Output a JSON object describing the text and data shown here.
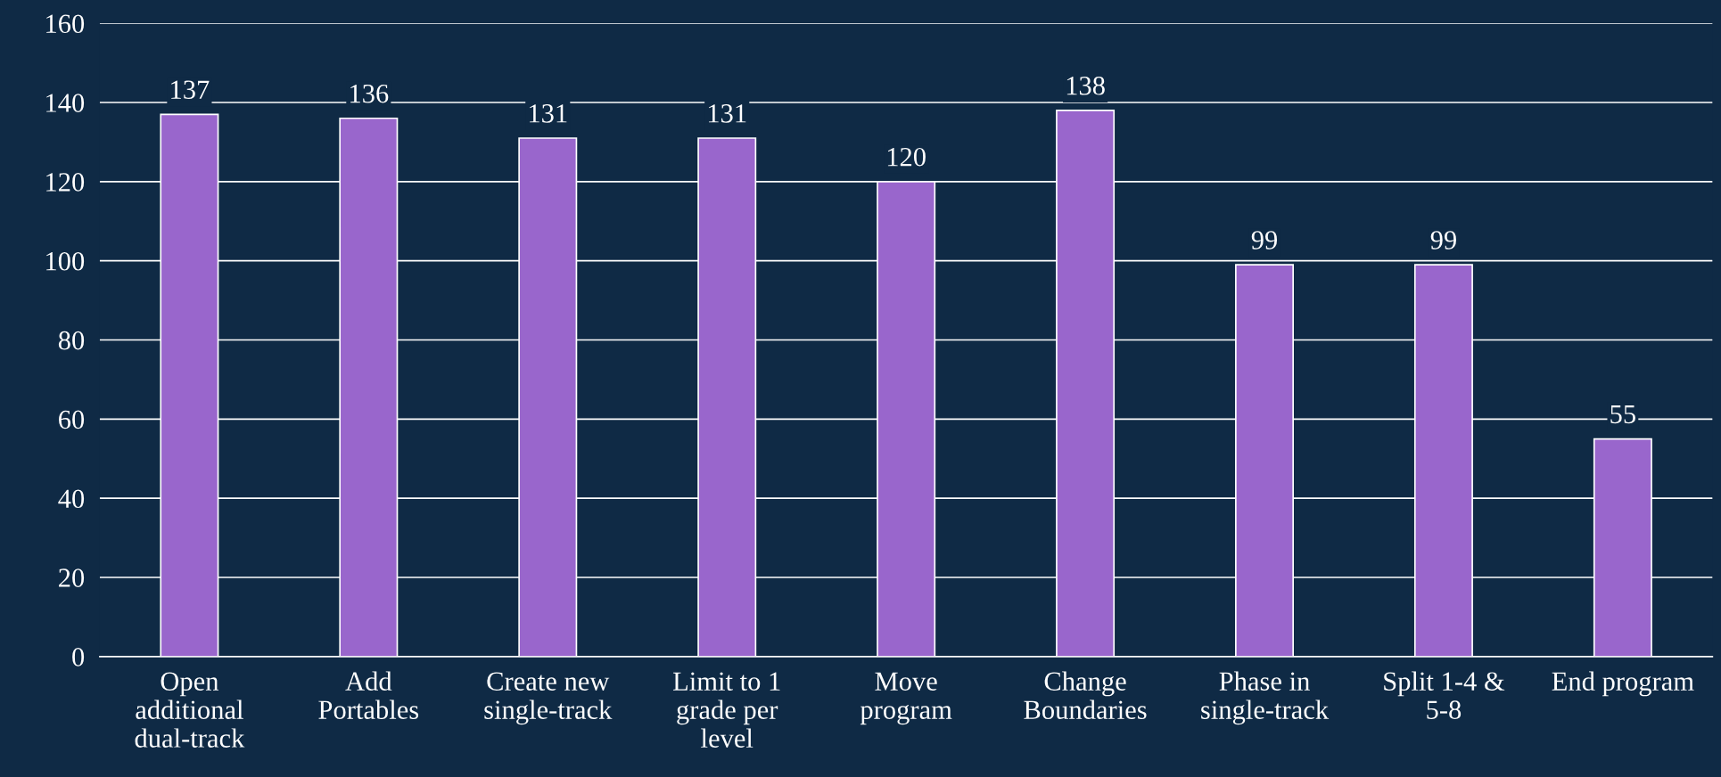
{
  "chart_data": {
    "type": "bar",
    "categories": [
      "Open additional dual-track",
      "Add Portables",
      "Create new single-track",
      "Limit to 1 grade per level",
      "Move program",
      "Change Boundaries",
      "Phase in single-track",
      "Split 1-4 & 5-8",
      "End program"
    ],
    "values": [
      137,
      136,
      131,
      131,
      120,
      138,
      99,
      99,
      55
    ],
    "color": "#9966cc",
    "ylim": [
      0,
      160
    ],
    "yticks": [
      0,
      20,
      40,
      60,
      80,
      100,
      120,
      140,
      160
    ],
    "grid": "y",
    "data_labels": true
  }
}
